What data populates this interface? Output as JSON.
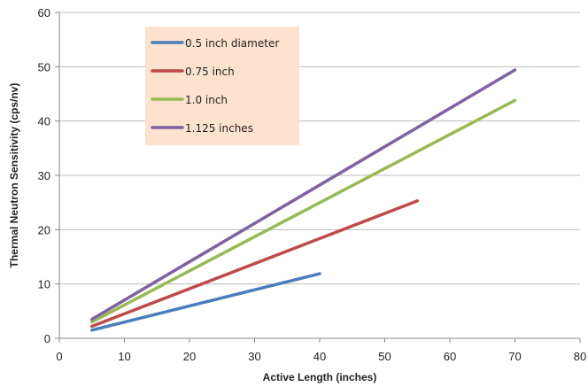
{
  "chart_data": {
    "type": "line",
    "title": "",
    "xlabel": "Active Length (inches)",
    "ylabel": "Thermal Neutron Sensitivity (cps/nv)",
    "xlim": [
      0,
      80
    ],
    "ylim": [
      0,
      60
    ],
    "x_ticks": [
      "0",
      "10",
      "20",
      "30",
      "40",
      "50",
      "60",
      "70",
      "80"
    ],
    "y_ticks": [
      "0",
      "10",
      "20",
      "30",
      "40",
      "50",
      "60"
    ],
    "grid": "horizontal",
    "legend_position": "top-left",
    "legend_background": "#fde3cf",
    "series": [
      {
        "name": "0.5 inch diameter",
        "color": "#4a7ebb",
        "x": [
          5,
          40
        ],
        "y": [
          1.5,
          11.9
        ]
      },
      {
        "name": "0.75 inch",
        "color": "#be4b48",
        "x": [
          5,
          55
        ],
        "y": [
          2.2,
          25.3
        ]
      },
      {
        "name": "1.0 inch",
        "color": "#98b954",
        "x": [
          5,
          70
        ],
        "y": [
          3.0,
          43.8
        ]
      },
      {
        "name": "1.125 inches",
        "color": "#7e62a1",
        "x": [
          5,
          70
        ],
        "y": [
          3.5,
          49.4
        ]
      }
    ]
  }
}
